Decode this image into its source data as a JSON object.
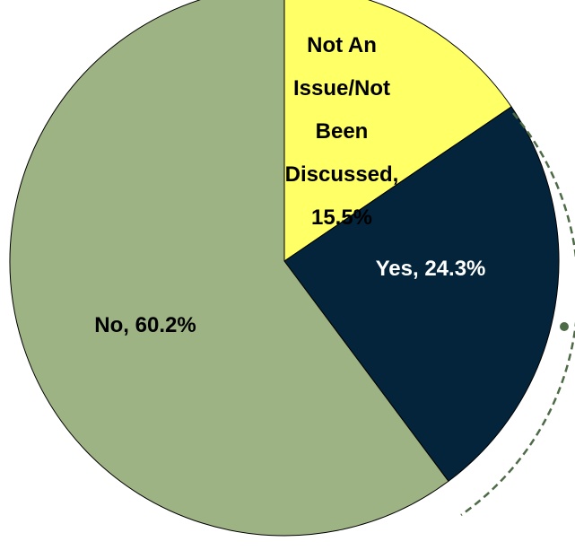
{
  "chart_data": {
    "type": "pie",
    "title": "",
    "slices": [
      {
        "key": "not_an_issue",
        "label_lines": [
          "Not An",
          "Issue/Not",
          "Been",
          "Discussed,",
          "15.5%"
        ],
        "value": 15.5,
        "color": "#ffff66",
        "text_color": "#000000"
      },
      {
        "key": "yes",
        "label_lines": [
          "Yes, 24.3%"
        ],
        "value": 24.3,
        "color": "#03243a",
        "text_color": "#ffffff"
      },
      {
        "key": "no",
        "label_lines": [
          "No, 60.2%"
        ],
        "value": 60.2,
        "color": "#9db384",
        "text_color": "#000000"
      }
    ],
    "start_angle_deg": 0,
    "direction": "clockwise",
    "callout_color": "#4e6b47",
    "legend": "none"
  }
}
